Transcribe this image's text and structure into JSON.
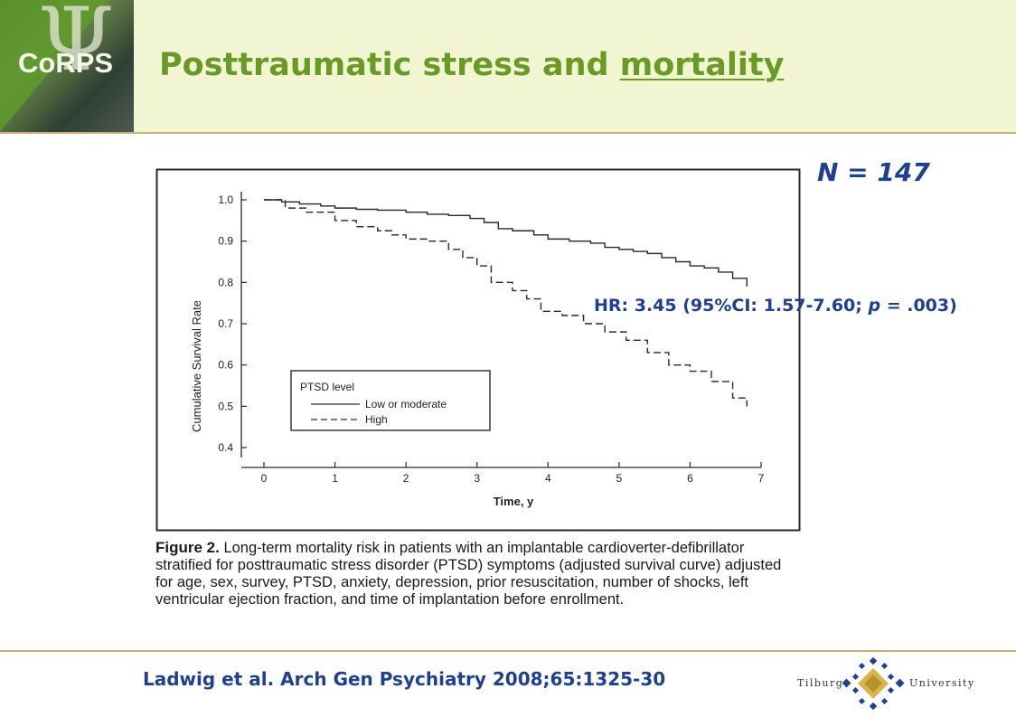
{
  "header": {
    "logo_text": "CoRPS",
    "title_prefix": "Posttraumatic stress and ",
    "title_emphasis": "mortality"
  },
  "annotations": {
    "n_label": "N = 147",
    "hr_label_part1": "HR: 3.45 (95%CI: 1.57-7.60; ",
    "hr_label_p": "p",
    "hr_label_part2": " = .003)"
  },
  "figure": {
    "caption_heading": "Figure 2.",
    "caption_text": "Long-term mortality risk in patients with an implantable cardioverter-defibrillator stratified for posttraumatic stress disorder (PTSD) symptoms (adjusted survival curve) adjusted for age, sex, survey, PTSD, anxiety, depression, prior resuscitation, number of shocks, left ventricular ejection fraction, and time of implantation before enrollment."
  },
  "footer": {
    "citation": "Ladwig et al. Arch Gen Psychiatry 2008;65:1325-30",
    "logo_left": "Tilburg",
    "logo_right": "University"
  },
  "chart_data": {
    "type": "line",
    "xlabel": "Time, y",
    "ylabel": "Cumulative Survival Rate",
    "xlim": [
      0,
      7
    ],
    "ylim": [
      0.4,
      1.0
    ],
    "xticks": [
      "0",
      "1",
      "2",
      "3",
      "4",
      "5",
      "6",
      "7"
    ],
    "yticks": [
      "0.4",
      "0.5",
      "0.6",
      "0.7",
      "0.8",
      "0.9",
      "1.0"
    ],
    "grid": false,
    "legend_title": "PTSD level",
    "legend_position": "bottom-left",
    "series": [
      {
        "name": "Low or moderate",
        "style": "solid",
        "x": [
          0,
          0.25,
          0.5,
          0.8,
          1.0,
          1.3,
          1.6,
          2.0,
          2.3,
          2.6,
          2.9,
          3.1,
          3.3,
          3.5,
          3.8,
          4.0,
          4.3,
          4.6,
          4.8,
          5.0,
          5.2,
          5.4,
          5.6,
          5.8,
          6.0,
          6.2,
          6.4,
          6.6,
          6.8
        ],
        "y": [
          1.0,
          0.995,
          0.99,
          0.985,
          0.98,
          0.977,
          0.975,
          0.97,
          0.965,
          0.962,
          0.955,
          0.945,
          0.93,
          0.925,
          0.915,
          0.905,
          0.9,
          0.895,
          0.885,
          0.88,
          0.875,
          0.87,
          0.86,
          0.85,
          0.84,
          0.835,
          0.825,
          0.81,
          0.79
        ]
      },
      {
        "name": "High",
        "style": "dashed",
        "x": [
          0,
          0.3,
          0.6,
          1.0,
          1.3,
          1.6,
          1.8,
          2.0,
          2.3,
          2.6,
          2.8,
          3.0,
          3.2,
          3.5,
          3.7,
          3.9,
          4.2,
          4.5,
          4.8,
          5.1,
          5.4,
          5.7,
          6.0,
          6.3,
          6.6,
          6.8
        ],
        "y": [
          1.0,
          0.98,
          0.97,
          0.95,
          0.935,
          0.925,
          0.915,
          0.905,
          0.9,
          0.88,
          0.86,
          0.84,
          0.8,
          0.78,
          0.76,
          0.73,
          0.72,
          0.7,
          0.68,
          0.66,
          0.63,
          0.6,
          0.585,
          0.56,
          0.52,
          0.5
        ]
      }
    ]
  }
}
